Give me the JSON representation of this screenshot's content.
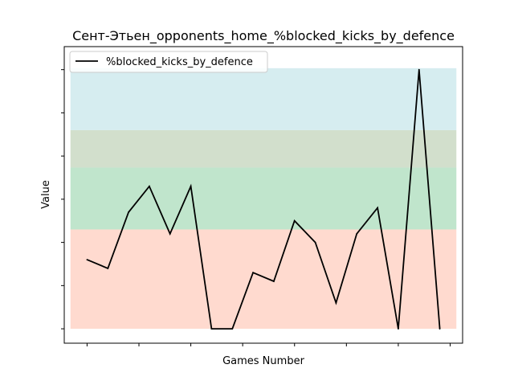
{
  "chart_data": {
    "type": "line",
    "title": "Сент-Этьен_opponents_home_%blocked_kicks_by_defence",
    "xlabel": "Games Number",
    "ylabel": "Value",
    "xlim": [
      -1.1,
      18.1
    ],
    "ylim": [
      -0.05,
      0.98
    ],
    "x_tick_values": [
      0,
      2.5,
      5,
      7.5,
      10,
      12.5,
      15,
      17.5
    ],
    "y_tick_values": [
      0,
      0.15,
      0.3,
      0.45,
      0.6,
      0.75,
      0.9
    ],
    "x_tick_labels_visible": false,
    "y_tick_labels_visible": false,
    "grid": false,
    "legend": {
      "position": "top-left",
      "entries": [
        "%blocked_kicks_by_defence"
      ]
    },
    "bands": [
      {
        "y0": 0.0,
        "y1": 0.345,
        "color": "#ffdacf"
      },
      {
        "y0": 0.345,
        "y1": 0.56,
        "color": "#c0e5cc"
      },
      {
        "y0": 0.56,
        "y1": 0.69,
        "color": "#d2dfcc"
      },
      {
        "y0": 0.69,
        "y1": 0.905,
        "color": "#d6edf0"
      }
    ],
    "series": [
      {
        "name": "%blocked_kicks_by_defence",
        "color": "#000000",
        "x": [
          0,
          1,
          2,
          3,
          4,
          5,
          6,
          7,
          8,
          9,
          10,
          11,
          12,
          13,
          14,
          15,
          16,
          17
        ],
        "y": [
          0.24,
          0.21,
          0.405,
          0.495,
          0.33,
          0.495,
          0.0,
          0.0,
          0.195,
          0.165,
          0.375,
          0.3,
          0.09,
          0.33,
          0.42,
          0.0,
          0.9,
          0.0
        ]
      }
    ]
  }
}
